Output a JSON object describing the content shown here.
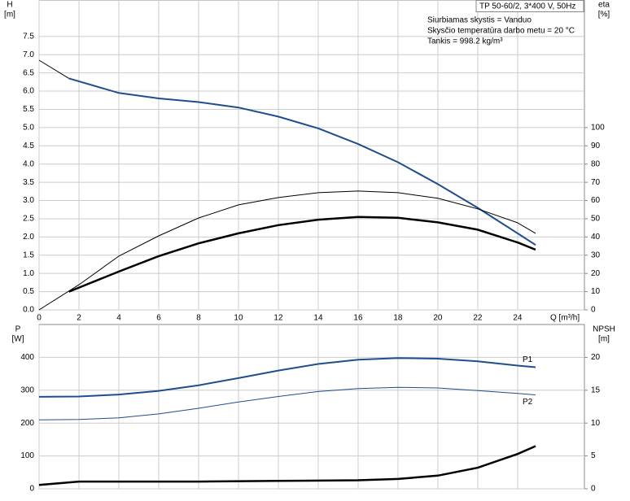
{
  "chart_data": [
    {
      "type": "line",
      "y_label": "H",
      "y_unit": "[m]",
      "y2_label": "eta",
      "y2_unit": "[%]",
      "x_label": "Q [m³/h]",
      "box_title": "TP 50-60/2, 3*400 V, 50Hz",
      "notes": [
        "Siurbiamas skystis = Vanduo",
        "Skysčio temperatūra darbo metu = 20 °C",
        "Tankis = 998.2 kg/m³"
      ],
      "xlim": [
        0,
        27.35
      ],
      "xticks": [
        0,
        2,
        4,
        6,
        8,
        10,
        12,
        14,
        16,
        18,
        20,
        22,
        24
      ],
      "ylim": [
        0,
        8.5
      ],
      "yticks": [
        {
          "value": 0,
          "label": "0.0"
        },
        0.5,
        {
          "value": 1,
          "label": "1.0"
        },
        1.5,
        {
          "value": 2,
          "label": "2.0"
        },
        2.5,
        {
          "value": 3,
          "label": "3.0"
        },
        3.5,
        {
          "value": 4,
          "label": "4.0"
        },
        4.5,
        {
          "value": 5,
          "label": "5.0"
        },
        5.5,
        {
          "value": 6,
          "label": "6.0"
        },
        6.5,
        {
          "value": 7,
          "label": "7.0"
        },
        7.5
      ],
      "y2lim": [
        0,
        170
      ],
      "y2ticks": [
        0,
        10,
        20,
        30,
        40,
        50,
        60,
        70,
        80,
        90,
        100
      ],
      "grid": true,
      "series": [
        {
          "color": "#000000",
          "linewidth": 1,
          "x": [
            0,
            1.5
          ],
          "values": [
            6.85,
            6.35
          ]
        },
        {
          "color": "#1f4e8c",
          "linewidth": 2,
          "x": [
            1.5,
            4,
            6,
            8,
            10,
            12,
            14,
            16,
            18,
            20,
            22,
            24,
            24.9
          ],
          "values": [
            6.35,
            5.95,
            5.8,
            5.7,
            5.55,
            5.3,
            4.98,
            4.55,
            4.05,
            3.45,
            2.8,
            2.1,
            1.78
          ]
        },
        {
          "color": "#000000",
          "linewidth": 1,
          "axis": "y2",
          "x": [
            0,
            2,
            4,
            6,
            8,
            10,
            12,
            14,
            16,
            18,
            20,
            22,
            24,
            24.9
          ],
          "values": [
            0,
            13.8,
            29.5,
            40.6,
            50.4,
            57.6,
            61.6,
            64.3,
            65.2,
            64.3,
            61.2,
            55.4,
            47.8,
            42
          ]
        },
        {
          "color": "#000000",
          "linewidth": 2.5,
          "axis": "y2",
          "x": [
            1.5,
            4,
            6,
            8,
            10,
            12,
            14,
            16,
            18,
            20,
            22,
            24,
            24.9
          ],
          "values": [
            10,
            21,
            29.5,
            36.5,
            42,
            46.5,
            49.5,
            51,
            50.5,
            48,
            44,
            37,
            33
          ]
        }
      ]
    },
    {
      "type": "line",
      "y_label": "P",
      "y_unit": "[W]",
      "y2_label": "NPSH",
      "y2_unit": "[m]",
      "xlim": [
        0,
        27.35
      ],
      "xticks": [
        0,
        2,
        4,
        6,
        8,
        10,
        12,
        14,
        16,
        18,
        20,
        22,
        24
      ],
      "ylim": [
        0,
        500
      ],
      "yticks": [
        0,
        100,
        200,
        300,
        400
      ],
      "y2lim": [
        0,
        25
      ],
      "y2ticks": [
        0,
        5,
        10,
        15,
        20
      ],
      "grid": true,
      "series": [
        {
          "name": "P1",
          "color": "#1f4e8c",
          "linewidth": 2,
          "x": [
            0,
            2,
            4,
            6,
            8,
            10,
            12,
            14,
            16,
            18,
            20,
            22,
            24,
            24.9
          ],
          "values": [
            280,
            281,
            287,
            298,
            315,
            337,
            360,
            380,
            393,
            398,
            396,
            388,
            375,
            370
          ]
        },
        {
          "name": "P2",
          "color": "#1f4e8c",
          "linewidth": 1,
          "x": [
            0,
            2,
            4,
            6,
            8,
            10,
            12,
            14,
            16,
            18,
            20,
            22,
            24,
            24.9
          ],
          "values": [
            210,
            211,
            216,
            228,
            245,
            264,
            281,
            296,
            305,
            309,
            307,
            299,
            290,
            286
          ]
        },
        {
          "color": "#000000",
          "linewidth": 2.5,
          "axis": "y2",
          "x": [
            0,
            2,
            4,
            8,
            12,
            16,
            18,
            20,
            22,
            24,
            24.9
          ],
          "values": [
            0.6,
            1.1,
            1.1,
            1.1,
            1.2,
            1.3,
            1.5,
            2.0,
            3.2,
            5.3,
            6.5
          ]
        }
      ]
    }
  ]
}
